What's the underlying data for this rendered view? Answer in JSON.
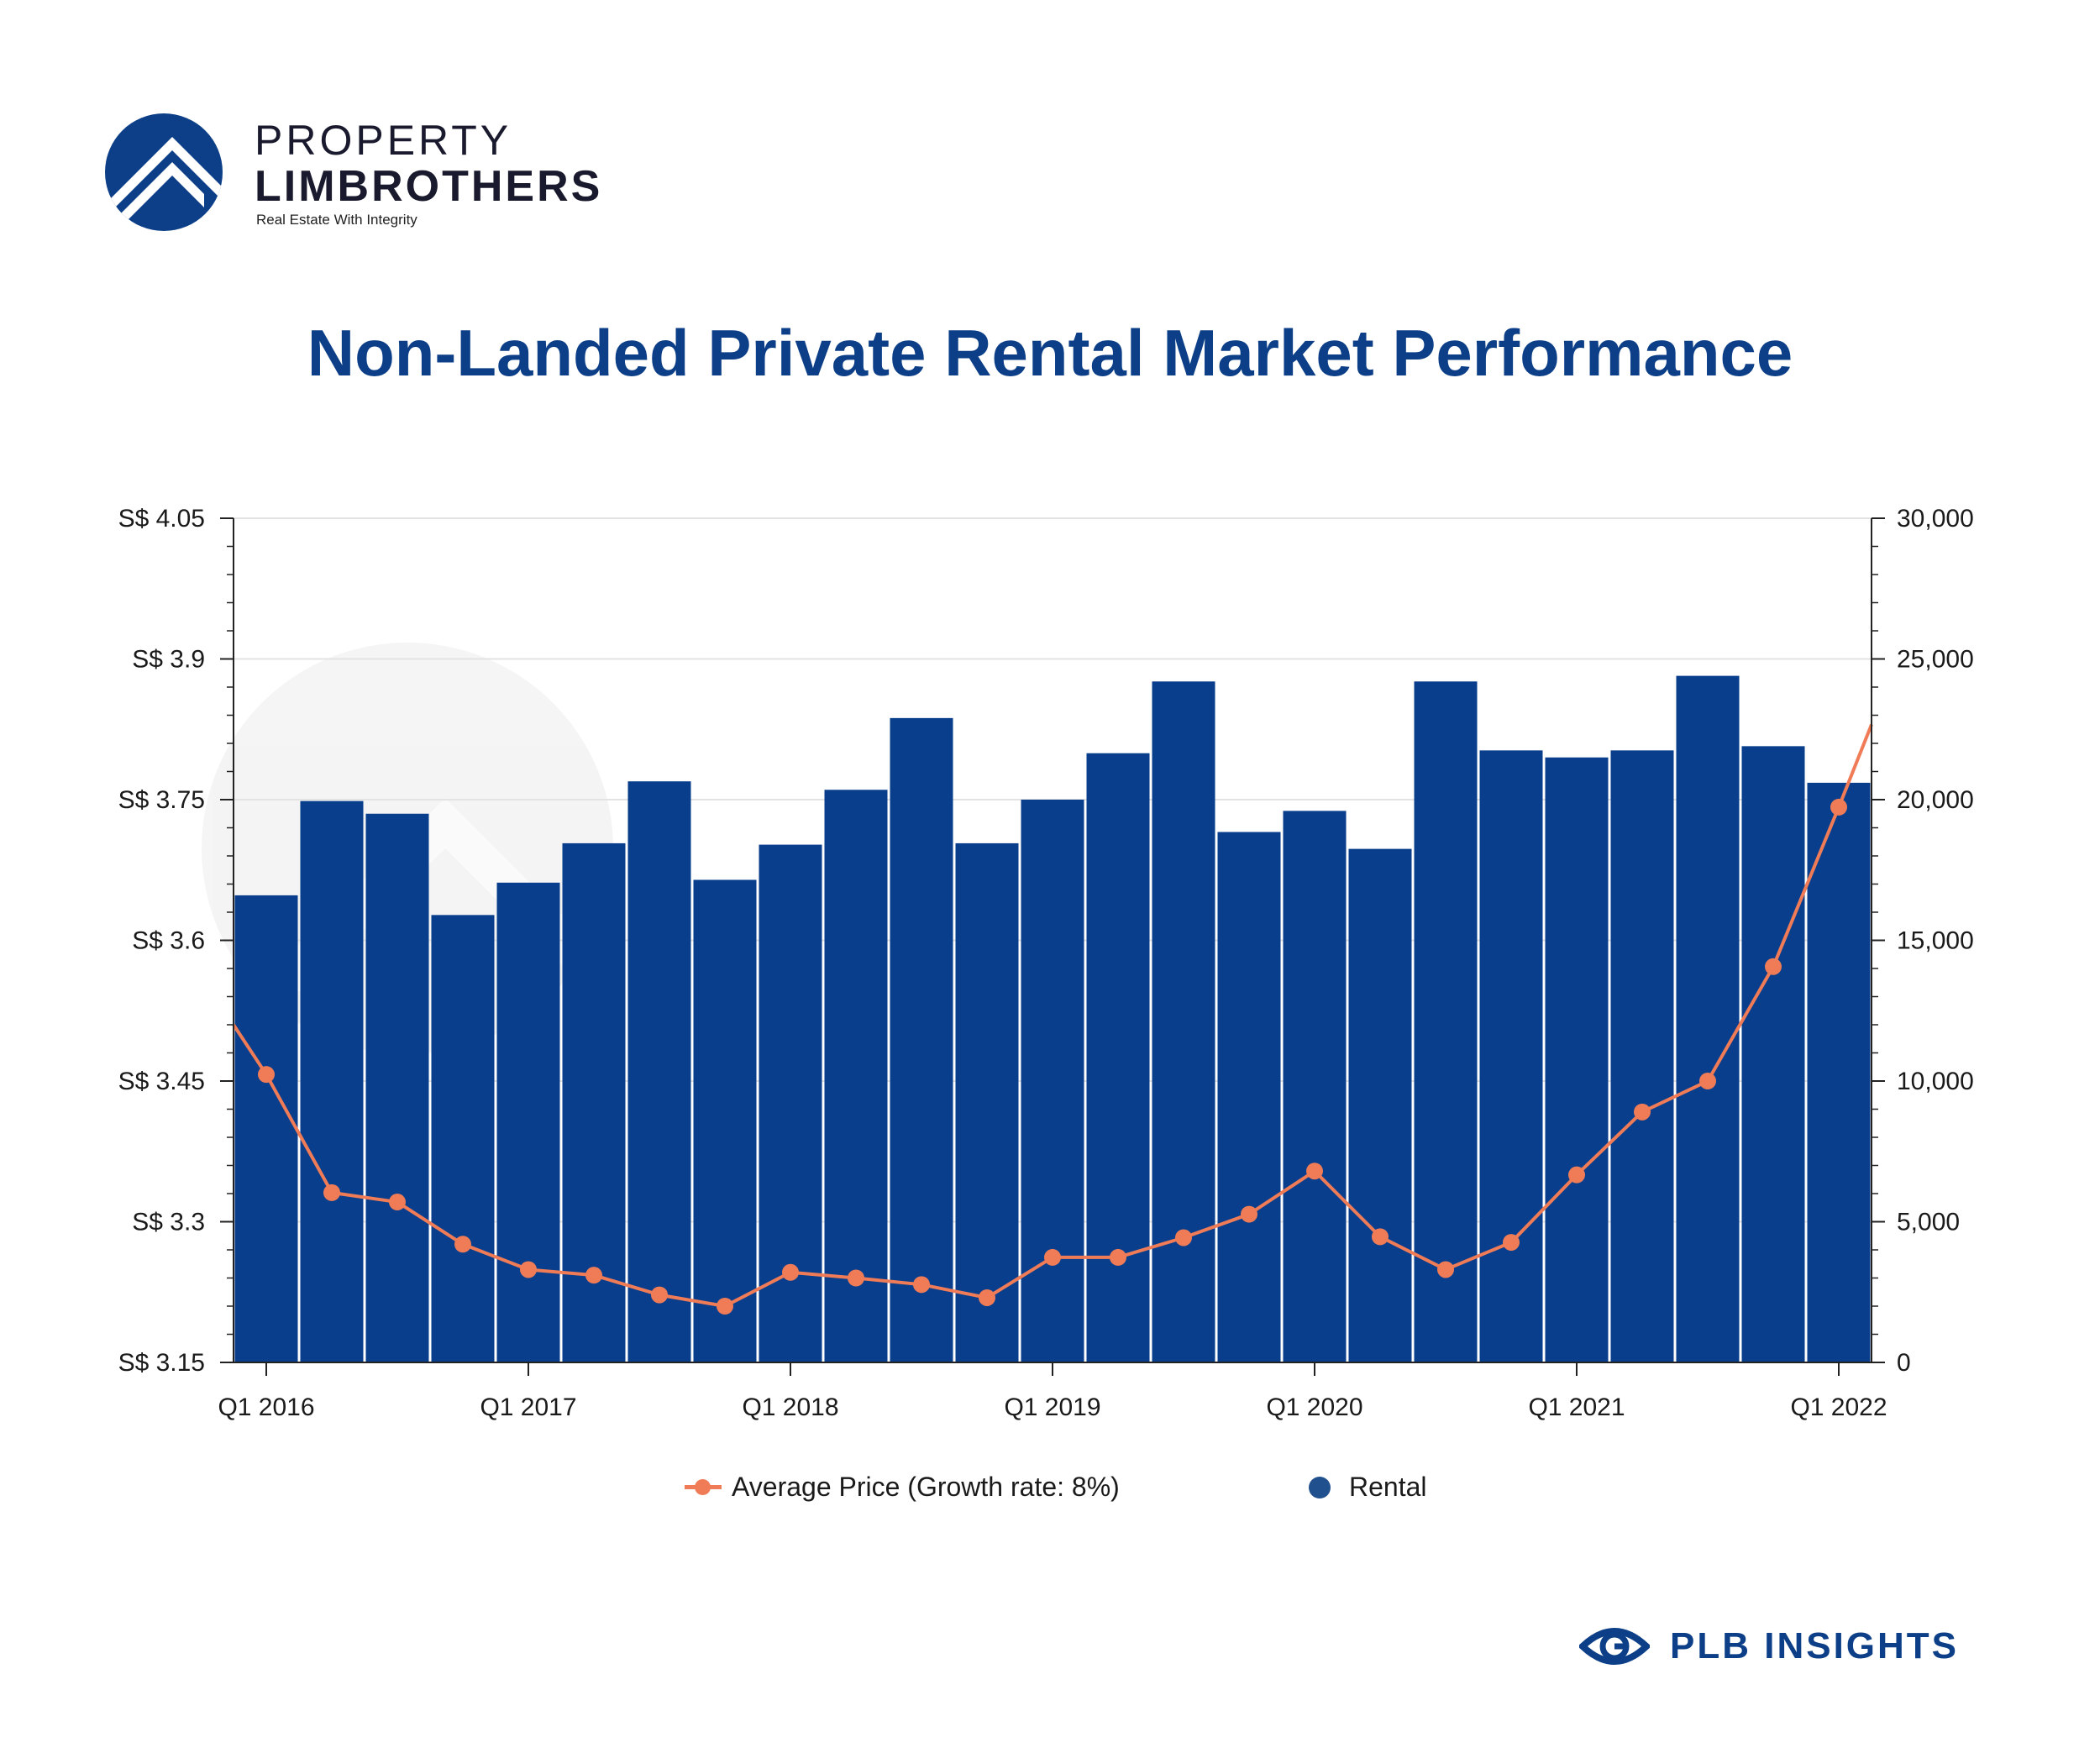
{
  "logo": {
    "line1": "PROPERTY",
    "line2": "LIMBROTHERS",
    "tagline": "Real Estate With Integrity"
  },
  "title": "Non-Landed Private Rental Market Performance",
  "legend": {
    "price": "Average Price (Growth rate: 8%)",
    "rental": "Rental"
  },
  "brand": {
    "text": "PLB INSIGHTS"
  },
  "colors": {
    "bar": "#083e8c",
    "line": "#f07c57",
    "title": "#0c3f87"
  },
  "chart_data": {
    "type": "bar",
    "title": "Non-Landed Private Rental Market Performance",
    "x_ticks": [
      "Q1 2016",
      "Q1 2017",
      "Q1 2018",
      "Q1 2019",
      "Q1 2020",
      "Q1 2021",
      "Q1 2022"
    ],
    "left_axis": {
      "range": [
        3.15,
        4.05
      ],
      "ticks": [
        3.15,
        3.3,
        3.45,
        3.6,
        3.75,
        3.9,
        4.05
      ],
      "tick_labels": [
        "S$ 3.15",
        "S$ 3.3",
        "S$ 3.45",
        "S$ 3.6",
        "S$ 3.75",
        "S$ 3.9",
        "S$ 4.05"
      ]
    },
    "right_axis": {
      "range": [
        0,
        30000
      ],
      "ticks": [
        0,
        5000,
        10000,
        15000,
        20000,
        25000,
        30000
      ],
      "tick_labels": [
        "0",
        "5,000",
        "10,000",
        "15,000",
        "20,000",
        "25,000",
        "30,000"
      ]
    },
    "series": [
      {
        "name": "Rental",
        "type": "bar",
        "axis": "right",
        "values": [
          16600,
          19950,
          19500,
          15900,
          17050,
          18450,
          20650,
          17150,
          18400,
          20350,
          22900,
          18450,
          20000,
          21650,
          24200,
          18850,
          19600,
          18250,
          24200,
          21750,
          21500,
          21750,
          24400,
          21900,
          20600
        ]
      },
      {
        "name": "Average Price (Growth rate: 8%)",
        "type": "line",
        "axis": "left",
        "values": [
          3.457,
          3.331,
          3.321,
          3.276,
          3.249,
          3.243,
          3.222,
          3.21,
          3.246,
          3.24,
          3.233,
          3.219,
          3.262,
          3.262,
          3.283,
          3.308,
          3.354,
          3.284,
          3.249,
          3.278,
          3.35,
          3.417,
          3.45,
          3.572,
          3.742
        ],
        "line_start": 3.51,
        "line_end": 3.83
      }
    ],
    "grid": "horizontal",
    "legend_position": "bottom"
  }
}
